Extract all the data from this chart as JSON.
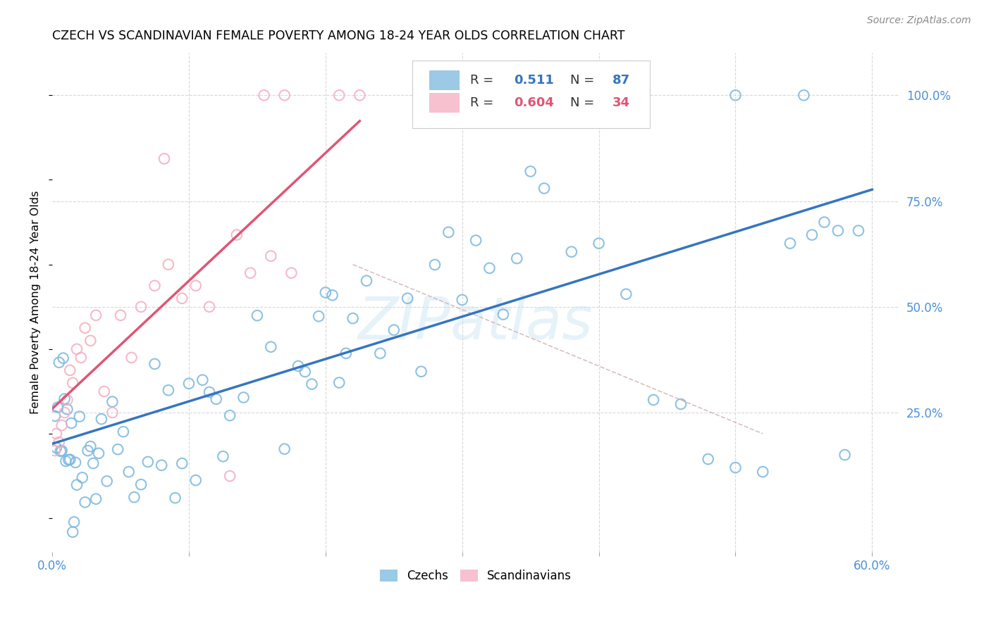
{
  "title": "CZECH VS SCANDINAVIAN FEMALE POVERTY AMONG 18-24 YEAR OLDS CORRELATION CHART",
  "source": "Source: ZipAtlas.com",
  "ylabel": "Female Poverty Among 18-24 Year Olds",
  "xlim": [
    0.0,
    0.62
  ],
  "ylim": [
    -0.08,
    1.1
  ],
  "yticks_right": [
    0.0,
    0.25,
    0.5,
    0.75,
    1.0
  ],
  "ytick_labels_right": [
    "",
    "25.0%",
    "50.0%",
    "75.0%",
    "100.0%"
  ],
  "czech_color": "#7ab8de",
  "scand_color": "#f5adc0",
  "czech_R": 0.511,
  "czech_N": 87,
  "scand_R": 0.604,
  "scand_N": 34,
  "legend_label_czech": "Czechs",
  "legend_label_scand": "Scandinavians",
  "watermark_text": "ZIPatlas",
  "background_color": "#ffffff",
  "grid_color": "#d8d8d8",
  "blue_line_color": "#3575c0",
  "pink_line_color": "#e05575",
  "diag_line_color": "#d0b0b0",
  "tick_color": "#4a90d9",
  "r_value_color_blue": "#3575c0",
  "r_value_color_pink": "#e05575"
}
